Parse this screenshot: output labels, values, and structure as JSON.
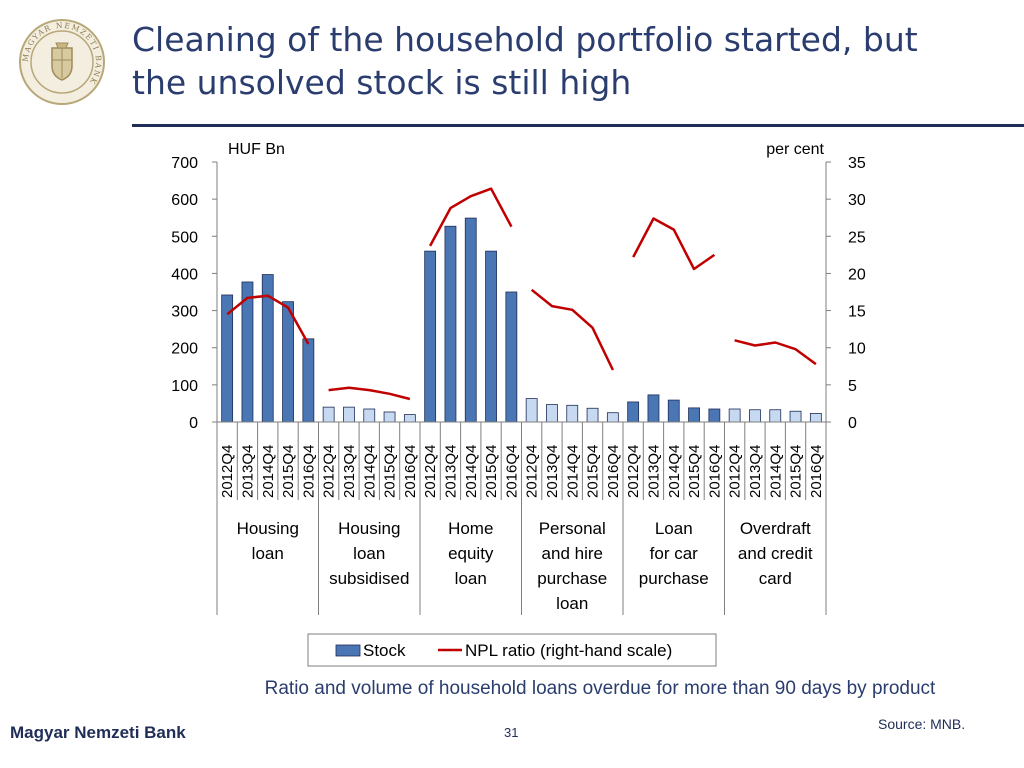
{
  "header": {
    "title_line1": "Cleaning of the household portfolio started, but",
    "title_line2": "the unsolved stock is still high",
    "logo_text": "MAGYAR NEMZETI BANK"
  },
  "colors": {
    "bar_dark": "#4a76b4",
    "bar_light": "#c6d9f0",
    "line": "#c00000",
    "title": "#2a3d6e"
  },
  "chart_data": {
    "type": "bar",
    "left_axis_label": "HUF Bn",
    "right_axis_label": "per cent",
    "ylim_left": [
      0,
      700
    ],
    "ylim_right": [
      0,
      35
    ],
    "left_ticks": [
      0,
      100,
      200,
      300,
      400,
      500,
      600,
      700
    ],
    "right_ticks": [
      0,
      5,
      10,
      15,
      20,
      25,
      30,
      35
    ],
    "periods": [
      "2012Q4",
      "2013Q4",
      "2014Q4",
      "2015Q4",
      "2016Q4"
    ],
    "groups": [
      {
        "label": [
          "Housing",
          "loan"
        ],
        "stock": [
          342,
          377,
          397,
          324,
          224
        ],
        "npl": [
          14.5,
          16.7,
          17.0,
          15.4,
          10.5
        ],
        "bar_style": "dark"
      },
      {
        "label": [
          "Housing",
          "loan",
          "subsidised"
        ],
        "stock": [
          40,
          40,
          35,
          27,
          20
        ],
        "npl": [
          4.3,
          4.6,
          4.3,
          3.8,
          3.1
        ],
        "bar_style": "light"
      },
      {
        "label": [
          "Home",
          "equity",
          "loan"
        ],
        "stock": [
          460,
          527,
          549,
          460,
          350
        ],
        "npl": [
          23.7,
          28.8,
          30.4,
          31.4,
          26.3
        ],
        "bar_style": "dark"
      },
      {
        "label": [
          "Personal",
          "and hire",
          "purchase",
          "loan"
        ],
        "stock": [
          63,
          47,
          45,
          37,
          25
        ],
        "npl": [
          17.8,
          15.6,
          15.1,
          12.7,
          7.0
        ],
        "bar_style": "light"
      },
      {
        "label": [
          "Loan",
          "for car",
          "purchase"
        ],
        "stock": [
          54,
          73,
          59,
          38,
          35
        ],
        "npl": [
          22.2,
          27.4,
          25.9,
          20.6,
          22.5
        ],
        "bar_style": "dark"
      },
      {
        "label": [
          "Overdraft",
          "and credit",
          "card"
        ],
        "stock": [
          35,
          33,
          33,
          29,
          23
        ],
        "npl": [
          11.0,
          10.3,
          10.7,
          9.8,
          7.8
        ],
        "bar_style": "light"
      }
    ],
    "legend": {
      "stock": "Stock",
      "npl": "NPL ratio (right-hand scale)"
    }
  },
  "footer": {
    "subtitle": "Ratio and volume of household loans overdue for more than 90 days by product",
    "source": "Source: MNB.",
    "bank_name": "Magyar Nemzeti Bank",
    "page_number": "31"
  }
}
